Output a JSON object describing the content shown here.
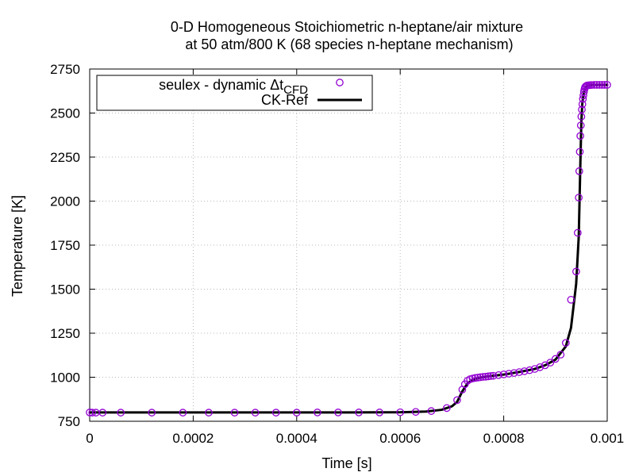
{
  "chart_data": {
    "type": "scatter",
    "title": "0-D Homogeneous Stoichiometric n-heptane/air mixture",
    "subtitle": "at 50 atm/800 K (68 species n-heptane mechanism)",
    "xlabel": "Time [s]",
    "ylabel": "Temperature [K]",
    "xlim": [
      0,
      0.001
    ],
    "ylim": [
      750,
      2750
    ],
    "x_ticks": [
      "0",
      "0.0002",
      "0.0004",
      "0.0006",
      "0.0008",
      "0.001"
    ],
    "x_tick_values": [
      0,
      0.0002,
      0.0004,
      0.0006,
      0.0008,
      0.001
    ],
    "y_ticks": [
      "750",
      "1000",
      "1250",
      "1500",
      "1750",
      "2000",
      "2250",
      "2500",
      "2750"
    ],
    "y_tick_values": [
      750,
      1000,
      1250,
      1500,
      1750,
      2000,
      2250,
      2500,
      2750
    ],
    "grid": true,
    "legend_position": "top-left",
    "series": [
      {
        "name": "seulex - dynamic Δt",
        "name_subscript": "CFD",
        "style": "markers",
        "marker": "open-circle",
        "color": "#9400d3",
        "x": [
          0,
          5e-06,
          1.2e-05,
          2.5e-05,
          6e-05,
          0.00012,
          0.00018,
          0.00023,
          0.00028,
          0.00032,
          0.00036,
          0.0004,
          0.00044,
          0.00048,
          0.00052,
          0.00056,
          0.0006,
          0.00063,
          0.00066,
          0.00069,
          0.00071,
          0.00072,
          0.000725,
          0.00073,
          0.000735,
          0.00074,
          0.000745,
          0.00075,
          0.000755,
          0.00076,
          0.000765,
          0.00077,
          0.000775,
          0.00078,
          0.00079,
          0.0008,
          0.00081,
          0.00082,
          0.00083,
          0.00084,
          0.00085,
          0.00086,
          0.00087,
          0.00088,
          0.00089,
          0.0009,
          0.00091,
          0.00092,
          0.00093,
          0.00094,
          0.000943,
          0.000945,
          0.000946,
          0.000947,
          0.000948,
          0.000949,
          0.00095,
          0.000951,
          0.000952,
          0.000953,
          0.000954,
          0.000955,
          0.000956,
          0.000957,
          0.000958,
          0.00096,
          0.000962,
          0.000965,
          0.000968,
          0.00097,
          0.000975,
          0.00098,
          0.000985,
          0.00099,
          0.000995,
          0.001
        ],
        "y": [
          800,
          799,
          799,
          799,
          799,
          799,
          799,
          799,
          799,
          799,
          799,
          799,
          800,
          800,
          800,
          800,
          801,
          803,
          808,
          825,
          870,
          930,
          960,
          980,
          989,
          993,
          996,
          998,
          1000,
          1002,
          1003,
          1005,
          1007,
          1008,
          1012,
          1016,
          1020,
          1024,
          1029,
          1034,
          1040,
          1047,
          1057,
          1068,
          1083,
          1104,
          1128,
          1195,
          1440,
          1600,
          1820,
          2020,
          2170,
          2280,
          2370,
          2430,
          2480,
          2520,
          2550,
          2580,
          2600,
          2620,
          2635,
          2645,
          2650,
          2655,
          2657,
          2658,
          2659,
          2659,
          2660,
          2660,
          2660,
          2660,
          2660,
          2660
        ]
      },
      {
        "name": "CK-Ref",
        "style": "line",
        "color": "#000000",
        "x": [
          0,
          0.0001,
          0.0002,
          0.0003,
          0.0004,
          0.0005,
          0.0006,
          0.00065,
          0.00068,
          0.0007,
          0.00071,
          0.00072,
          0.00073,
          0.00074,
          0.00075,
          0.00077,
          0.0008,
          0.00083,
          0.00086,
          0.00088,
          0.0009,
          0.00092,
          0.00093,
          0.00094,
          0.000945,
          0.000948,
          0.00095,
          0.000952,
          0.000955,
          0.00096,
          0.000965,
          0.00097,
          0.00098,
          0.00099,
          0.001
        ],
        "y": [
          800,
          800,
          800,
          800,
          800,
          800,
          801,
          805,
          815,
          835,
          860,
          920,
          965,
          985,
          995,
          1005,
          1015,
          1030,
          1047,
          1068,
          1100,
          1175,
          1280,
          1530,
          1800,
          2200,
          2450,
          2560,
          2620,
          2650,
          2658,
          2660,
          2660,
          2660,
          2660
        ]
      }
    ]
  }
}
